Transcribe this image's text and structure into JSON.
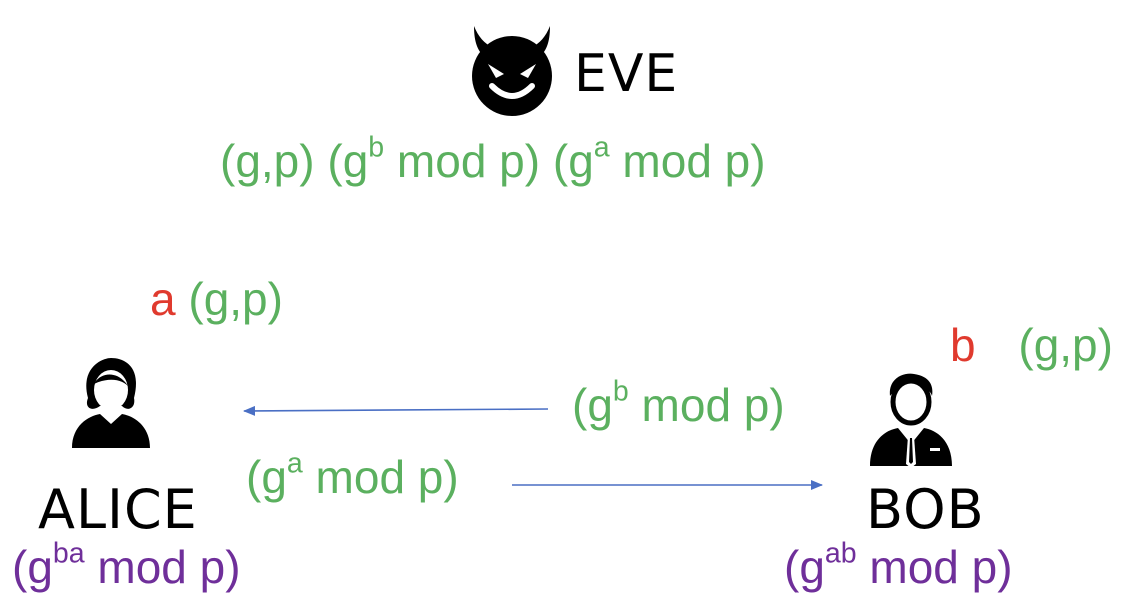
{
  "eve": {
    "name": "EVE",
    "icon": "devil-face-icon",
    "knowledge": [
      {
        "base": "(g,p)",
        "exp": ""
      },
      {
        "base": "(g",
        "exp": "b",
        "tail": " mod p)"
      },
      {
        "base": "(g",
        "exp": "a",
        "tail": " mod p)"
      }
    ]
  },
  "alice": {
    "name": "ALICE",
    "icon": "woman-user-icon",
    "secret": "a",
    "public": "(g,p)",
    "key_base": "(g",
    "key_exp": "ba",
    "key_tail": " mod p)"
  },
  "bob": {
    "name": "BOB",
    "icon": "man-suit-user-icon",
    "secret": "b",
    "public": "(g,p)",
    "key_base": "(g",
    "key_exp": "ab",
    "key_tail": " mod p)"
  },
  "messages": {
    "to_alice": {
      "base": "(g",
      "exp": "b",
      "tail": " mod p)"
    },
    "to_bob": {
      "base": "(g",
      "exp": "a",
      "tail": " mod p)"
    }
  },
  "colors": {
    "public": "#5bb05f",
    "secret": "#e03a2e",
    "shared_key": "#6f2f9a",
    "arrow": "#4a6fc4"
  }
}
